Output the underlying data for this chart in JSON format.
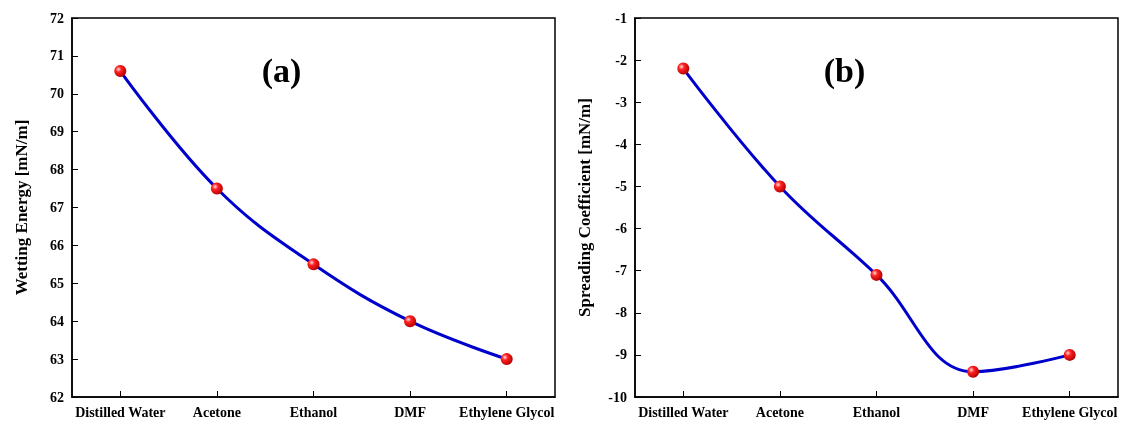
{
  "chart_data": [
    {
      "type": "line",
      "title": "(a)",
      "ylabel": "Wetting Energy [mN/m]",
      "categories": [
        "Distilled Water",
        "Acetone",
        "Ethanol",
        "DMF",
        "Ethylene Glycol"
      ],
      "series": [
        {
          "color": "#0000cc",
          "values": [
            70.6,
            67.5,
            65.5,
            64.0,
            63.0
          ]
        }
      ],
      "ylim": [
        62,
        72
      ],
      "yticks": [
        62,
        63,
        64,
        65,
        66,
        67,
        68,
        69,
        70,
        71,
        72
      ],
      "marker": "circle",
      "grid": false
    },
    {
      "type": "line",
      "title": "(b)",
      "ylabel": "Spreading Coefficient [mN/m]",
      "categories": [
        "Distilled Water",
        "Acetone",
        "Ethanol",
        "DMF",
        "Ethylene Glycol"
      ],
      "series": [
        {
          "color": "#0000cc",
          "values": [
            -2.2,
            -5.0,
            -7.1,
            -9.4,
            -9.0
          ]
        }
      ],
      "ylim": [
        -10,
        -1
      ],
      "yticks": [
        -10,
        -9,
        -8,
        -7,
        -6,
        -5,
        -4,
        -3,
        -2,
        -1
      ],
      "marker": "circle",
      "grid": false
    }
  ]
}
